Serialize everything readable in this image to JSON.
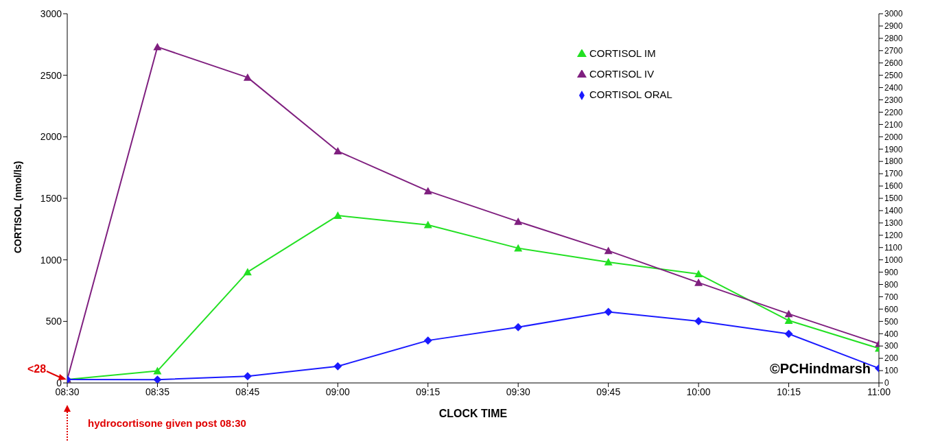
{
  "chart_data": {
    "type": "line",
    "xlabel": "CLOCK TIME",
    "ylabel": "CORTISOL (nmol/ls)",
    "categories": [
      "08:30",
      "08:35",
      "08:45",
      "09:00",
      "09:15",
      "09:30",
      "09:45",
      "10:00",
      "10:15",
      "11:00"
    ],
    "series": [
      {
        "name": "CORTISOL IM",
        "color": "#22e022",
        "marker": "triangle",
        "values": [
          28,
          97,
          901,
          1360,
          1284,
          1095,
          982,
          885,
          507,
          281
        ]
      },
      {
        "name": "CORTISOL IV",
        "color": "#7f1f7f",
        "marker": "triangle",
        "values": [
          28,
          2730,
          2482,
          1883,
          1559,
          1311,
          1074,
          815,
          561,
          318
        ]
      },
      {
        "name": "CORTISOL ORAL",
        "color": "#1a1aff",
        "marker": "diamond",
        "values": [
          28,
          27,
          54,
          135,
          345,
          453,
          577,
          502,
          399,
          119
        ]
      }
    ],
    "ylim": [
      0,
      3000
    ],
    "yticks": [
      0,
      500,
      1000,
      1500,
      2000,
      2500,
      3000
    ],
    "y2lim": [
      0,
      3000
    ],
    "y2ticks": [
      0,
      100,
      200,
      300,
      400,
      500,
      600,
      700,
      800,
      900,
      1000,
      1100,
      1200,
      1300,
      1400,
      1500,
      1600,
      1700,
      1800,
      1900,
      2000,
      2100,
      2200,
      2300,
      2400,
      2500,
      2600,
      2700,
      2800,
      2900,
      3000
    ],
    "grid": false,
    "legend": "top right",
    "line_style": "solid",
    "annotations": [
      {
        "text": "<28",
        "x": "08:30",
        "y": 28
      },
      "hydrocortisone given post 08:30",
      "©PCHindmarsh"
    ]
  }
}
